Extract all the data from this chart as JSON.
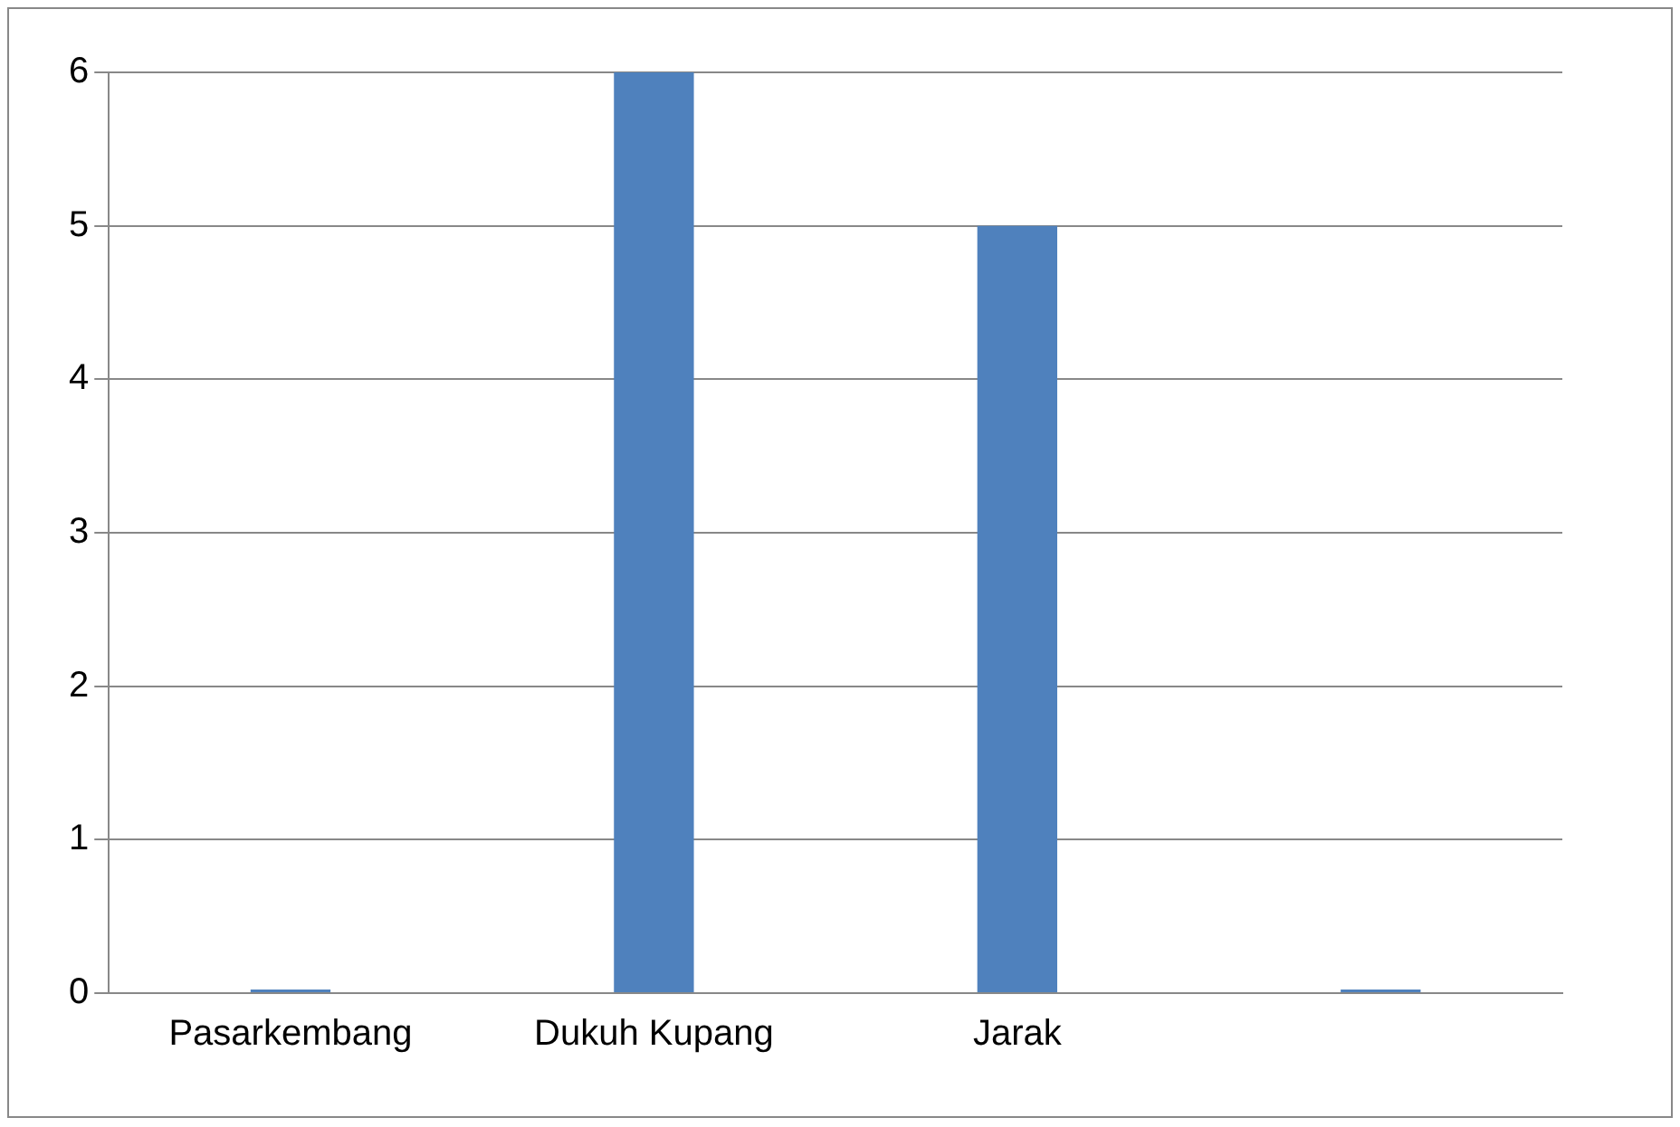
{
  "chart_data": {
    "type": "bar",
    "categories": [
      "Pasarkembang",
      "Dukuh Kupang",
      "Jarak",
      null
    ],
    "values": [
      0,
      6,
      5,
      0
    ],
    "color": "#4f81bd",
    "ylim": [
      0,
      6
    ],
    "yticks": [
      0,
      1,
      2,
      3,
      4,
      5,
      6
    ],
    "grid": "y"
  }
}
